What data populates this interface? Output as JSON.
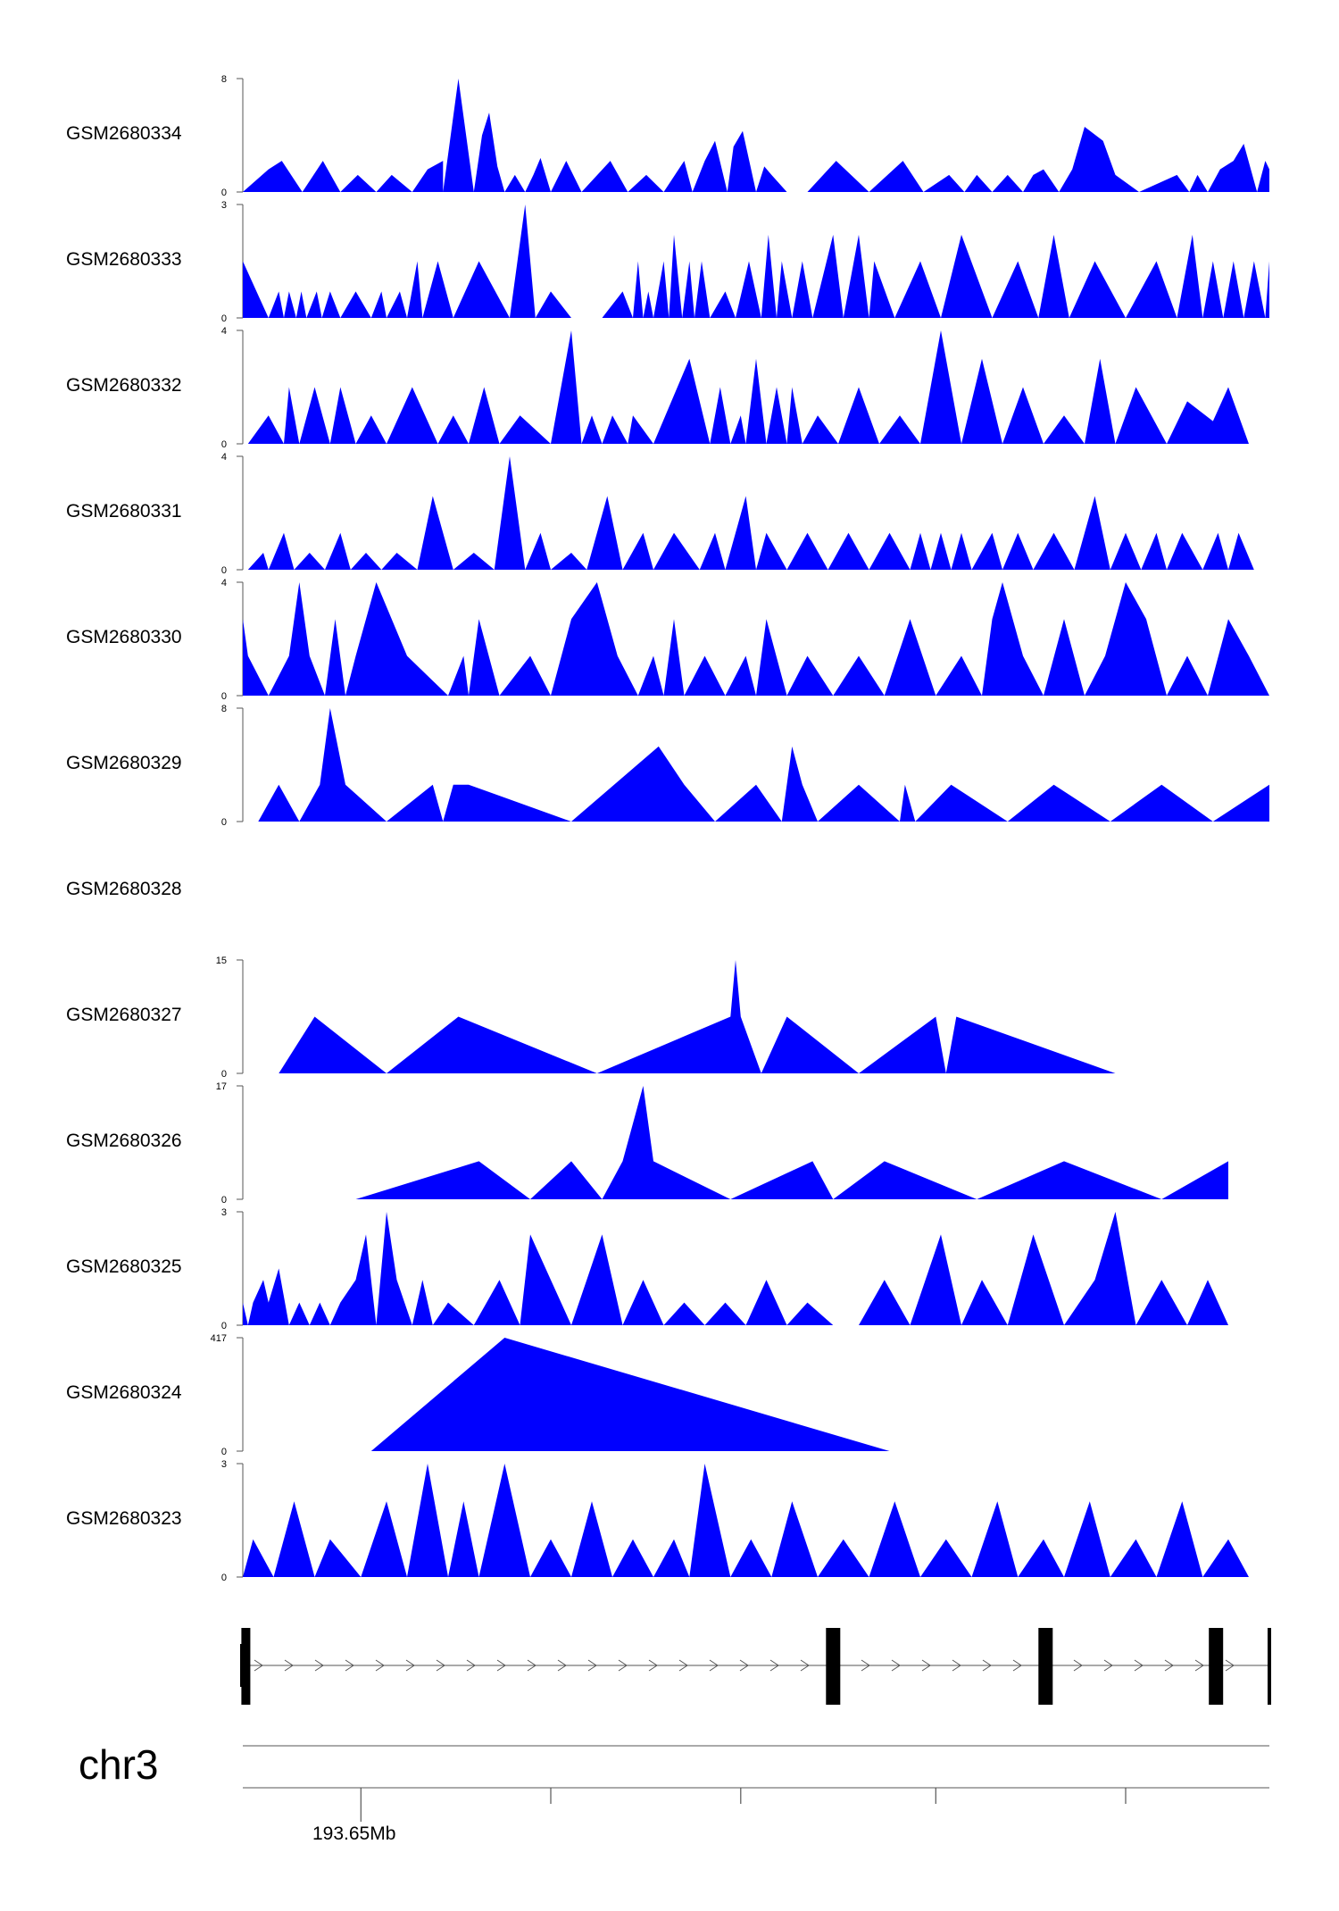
{
  "colors": {
    "signal": "#0000ff",
    "axis": "#555555",
    "gene": "#000000"
  },
  "chart_data": {
    "type": "area",
    "chromosome": "chr3",
    "position_label": "193.65Mb",
    "x_range": [
      0,
      1
    ],
    "tracks": [
      {
        "name": "GSM2680334",
        "ymax": 8,
        "x": [
          0,
          0.025,
          0.038,
          0.058,
          0.078,
          0.095,
          0.112,
          0.13,
          0.145,
          0.165,
          0.18,
          0.195,
          0.195,
          0.21,
          0.225,
          0.233,
          0.24,
          0.248,
          0.255,
          0.265,
          0.275,
          0.283,
          0.29,
          0.3,
          0.315,
          0.33,
          0.358,
          0.375,
          0.393,
          0.41,
          0.43,
          0.438,
          0.45,
          0.46,
          0.472,
          0.478,
          0.487,
          0.5,
          0.508,
          0.515,
          0.53,
          0.55,
          0.578,
          0.61,
          0.643,
          0.663,
          0.688,
          0.703,
          0.715,
          0.73,
          0.745,
          0.76,
          0.77,
          0.78,
          0.795,
          0.808,
          0.82,
          0.838,
          0.85,
          0.873,
          0.91,
          0.922,
          0.93,
          0.94,
          0.952,
          0.965,
          0.975,
          0.988,
          0.996,
          1.0
        ],
        "y": [
          0,
          1.6,
          2.2,
          0,
          2.2,
          0,
          1.2,
          0,
          1.2,
          0,
          1.6,
          2.2,
          0,
          8,
          0,
          4.0,
          5.6,
          1.8,
          0,
          1.2,
          0,
          1.2,
          2.4,
          0,
          2.2,
          0,
          2.2,
          0,
          1.2,
          0,
          2.2,
          0,
          2.2,
          3.6,
          0,
          3.2,
          4.3,
          0,
          1.8,
          1.2,
          0,
          0,
          2.2,
          0,
          2.2,
          0,
          1.2,
          0,
          1.2,
          0,
          1.2,
          0,
          1.2,
          1.6,
          0,
          1.6,
          4.6,
          3.6,
          1.2,
          0,
          1.2,
          0,
          1.2,
          0,
          1.6,
          2.2,
          3.4,
          0,
          2.2,
          1.6
        ]
      },
      {
        "name": "GSM2680333",
        "ymax": 3,
        "x": [
          0,
          0.025,
          0.035,
          0.04,
          0.045,
          0.052,
          0.057,
          0.062,
          0.072,
          0.077,
          0.085,
          0.095,
          0.11,
          0.125,
          0.135,
          0.14,
          0.153,
          0.16,
          0.17,
          0.175,
          0.19,
          0.205,
          0.23,
          0.26,
          0.275,
          0.285,
          0.3,
          0.32,
          0.35,
          0.37,
          0.38,
          0.385,
          0.39,
          0.395,
          0.4,
          0.41,
          0.415,
          0.42,
          0.428,
          0.435,
          0.44,
          0.447,
          0.455,
          0.47,
          0.48,
          0.493,
          0.505,
          0.512,
          0.52,
          0.525,
          0.535,
          0.545,
          0.555,
          0.575,
          0.585,
          0.6,
          0.61,
          0.615,
          0.635,
          0.66,
          0.68,
          0.7,
          0.73,
          0.755,
          0.775,
          0.79,
          0.805,
          0.83,
          0.86,
          0.89,
          0.91,
          0.925,
          0.935,
          0.945,
          0.955,
          0.965,
          0.975,
          0.985,
          0.996,
          1.0
        ],
        "y": [
          1.5,
          0,
          0.7,
          0,
          0.7,
          0,
          0.7,
          0,
          0.7,
          0,
          0.7,
          0,
          0.7,
          0,
          0.7,
          0,
          0.7,
          0,
          1.5,
          0,
          1.5,
          0,
          1.5,
          0,
          3.0,
          0,
          0.7,
          0,
          0,
          0.7,
          0,
          1.5,
          0,
          0.7,
          0,
          1.5,
          0,
          2.2,
          0,
          1.5,
          0,
          1.5,
          0,
          0.7,
          0,
          1.5,
          0,
          2.2,
          0,
          1.5,
          0,
          1.5,
          0,
          2.2,
          0,
          2.2,
          0,
          1.5,
          0,
          1.5,
          0,
          2.2,
          0,
          1.5,
          0,
          2.2,
          0,
          1.5,
          0,
          1.5,
          0,
          2.2,
          0,
          1.5,
          0,
          1.5,
          0,
          1.5,
          0,
          1.5
        ]
      },
      {
        "name": "GSM2680332",
        "ymax": 4,
        "x": [
          0.005,
          0.025,
          0.04,
          0.045,
          0.055,
          0.07,
          0.085,
          0.095,
          0.11,
          0.125,
          0.14,
          0.165,
          0.19,
          0.205,
          0.22,
          0.235,
          0.25,
          0.27,
          0.3,
          0.32,
          0.33,
          0.34,
          0.35,
          0.36,
          0.375,
          0.38,
          0.4,
          0.435,
          0.455,
          0.465,
          0.475,
          0.485,
          0.49,
          0.5,
          0.51,
          0.52,
          0.53,
          0.535,
          0.545,
          0.56,
          0.58,
          0.6,
          0.62,
          0.64,
          0.66,
          0.68,
          0.7,
          0.72,
          0.74,
          0.76,
          0.78,
          0.8,
          0.82,
          0.835,
          0.85,
          0.87,
          0.9,
          0.92,
          0.945,
          0.96,
          0.98
        ],
        "y": [
          0,
          1.0,
          0,
          2.0,
          0,
          2.0,
          0,
          2.0,
          0,
          1.0,
          0,
          2.0,
          0,
          1.0,
          0,
          2.0,
          0,
          1.0,
          0,
          4.0,
          0,
          1.0,
          0,
          1.0,
          0,
          1.0,
          0,
          3.0,
          0,
          2.0,
          0,
          1.0,
          0,
          3.0,
          0,
          2.0,
          0,
          2.0,
          0,
          1.0,
          0,
          2.0,
          0,
          1.0,
          0,
          4.0,
          0,
          3.0,
          0,
          2.0,
          0,
          1.0,
          0,
          3.0,
          0,
          2.0,
          0,
          1.5,
          0.8,
          2.0,
          0
        ]
      },
      {
        "name": "GSM2680331",
        "ymax": 4,
        "x": [
          0.005,
          0.02,
          0.025,
          0.04,
          0.05,
          0.065,
          0.08,
          0.095,
          0.105,
          0.12,
          0.135,
          0.15,
          0.17,
          0.185,
          0.205,
          0.225,
          0.245,
          0.26,
          0.275,
          0.29,
          0.3,
          0.32,
          0.335,
          0.355,
          0.37,
          0.39,
          0.4,
          0.42,
          0.445,
          0.46,
          0.47,
          0.49,
          0.5,
          0.51,
          0.53,
          0.55,
          0.57,
          0.59,
          0.61,
          0.63,
          0.65,
          0.66,
          0.67,
          0.68,
          0.69,
          0.7,
          0.71,
          0.73,
          0.74,
          0.755,
          0.77,
          0.79,
          0.81,
          0.83,
          0.845,
          0.86,
          0.875,
          0.89,
          0.9,
          0.915,
          0.935,
          0.95,
          0.96,
          0.97,
          0.985,
          0.995
        ],
        "y": [
          0,
          0.6,
          0,
          1.3,
          0,
          0.6,
          0,
          1.3,
          0,
          0.6,
          0,
          0.6,
          0,
          2.6,
          0,
          0.6,
          0,
          4.0,
          0,
          1.3,
          0,
          0.6,
          0,
          2.6,
          0,
          1.3,
          0,
          1.3,
          0,
          1.3,
          0,
          2.6,
          0,
          1.3,
          0,
          1.3,
          0,
          1.3,
          0,
          1.3,
          0,
          1.3,
          0,
          1.3,
          0,
          1.3,
          0,
          1.3,
          0,
          1.3,
          0,
          1.3,
          0,
          2.6,
          0,
          1.3,
          0,
          1.3,
          0,
          1.3,
          0,
          1.3,
          0,
          1.3,
          0,
          0
        ]
      },
      {
        "name": "GSM2680330",
        "ymax": 4,
        "x": [
          0.0,
          0.005,
          0.025,
          0.045,
          0.055,
          0.065,
          0.08,
          0.09,
          0.1,
          0.11,
          0.13,
          0.16,
          0.2,
          0.215,
          0.22,
          0.23,
          0.25,
          0.28,
          0.3,
          0.32,
          0.345,
          0.365,
          0.385,
          0.4,
          0.41,
          0.42,
          0.43,
          0.45,
          0.47,
          0.49,
          0.5,
          0.51,
          0.53,
          0.55,
          0.575,
          0.6,
          0.625,
          0.65,
          0.675,
          0.7,
          0.72,
          0.73,
          0.74,
          0.76,
          0.78,
          0.8,
          0.82,
          0.84,
          0.86,
          0.88,
          0.9,
          0.92,
          0.94,
          0.96,
          0.98,
          1.0
        ],
        "y": [
          2.7,
          1.4,
          0,
          1.4,
          4.0,
          1.4,
          0,
          2.7,
          0,
          1.4,
          4.0,
          1.4,
          0,
          1.4,
          0,
          2.7,
          0,
          1.4,
          0,
          2.7,
          4.0,
          1.4,
          0,
          1.4,
          0,
          2.7,
          0,
          1.4,
          0,
          1.4,
          0,
          2.7,
          0,
          1.4,
          0,
          1.4,
          0,
          2.7,
          0,
          1.4,
          0,
          2.7,
          4.0,
          1.4,
          0,
          2.7,
          0,
          1.4,
          4.0,
          2.7,
          0,
          1.4,
          0,
          2.7,
          1.4,
          0
        ]
      },
      {
        "name": "GSM2680329",
        "ymax": 8,
        "x": [
          0.015,
          0.035,
          0.055,
          0.075,
          0.085,
          0.1,
          0.14,
          0.185,
          0.195,
          0.205,
          0.22,
          0.32,
          0.405,
          0.43,
          0.46,
          0.5,
          0.525,
          0.535,
          0.545,
          0.56,
          0.6,
          0.64,
          0.645,
          0.655,
          0.69,
          0.745,
          0.79,
          0.845,
          0.895,
          0.945,
          1.0
        ],
        "y": [
          0,
          2.6,
          0,
          2.6,
          8,
          2.6,
          0,
          2.6,
          0,
          2.6,
          2.6,
          0,
          5.3,
          2.6,
          0,
          2.6,
          0,
          5.3,
          2.6,
          0,
          2.6,
          0,
          2.6,
          0,
          2.6,
          0,
          2.6,
          0,
          2.6,
          0,
          2.6
        ]
      },
      {
        "name": "GSM2680328",
        "ymax": null,
        "x": [],
        "y": []
      },
      {
        "name": "GSM2680327",
        "ymax": 15,
        "x": [
          0.035,
          0.07,
          0.14,
          0.21,
          0.345,
          0.475,
          0.48,
          0.485,
          0.505,
          0.53,
          0.6,
          0.675,
          0.685,
          0.695,
          0.85
        ],
        "y": [
          0,
          7.5,
          0,
          7.5,
          0,
          7.5,
          15,
          7.5,
          0,
          7.5,
          0,
          7.5,
          0,
          7.5,
          0
        ]
      },
      {
        "name": "GSM2680326",
        "ymax": 17,
        "x": [
          0.11,
          0.23,
          0.28,
          0.32,
          0.35,
          0.37,
          0.39,
          0.4,
          0.475,
          0.555,
          0.575,
          0.625,
          0.715,
          0.8,
          0.895,
          0.96
        ],
        "y": [
          0,
          5.7,
          0,
          5.7,
          0,
          5.7,
          17,
          5.7,
          0,
          5.7,
          0,
          5.7,
          0,
          5.7,
          0,
          5.7
        ]
      },
      {
        "name": "GSM2680325",
        "ymax": 3,
        "x": [
          0.0,
          0.005,
          0.01,
          0.02,
          0.025,
          0.035,
          0.045,
          0.055,
          0.065,
          0.075,
          0.085,
          0.095,
          0.11,
          0.12,
          0.13,
          0.14,
          0.15,
          0.165,
          0.175,
          0.185,
          0.2,
          0.225,
          0.25,
          0.27,
          0.28,
          0.3,
          0.32,
          0.335,
          0.35,
          0.37,
          0.39,
          0.41,
          0.43,
          0.45,
          0.47,
          0.49,
          0.51,
          0.53,
          0.55,
          0.575,
          0.6,
          0.625,
          0.65,
          0.68,
          0.7,
          0.72,
          0.745,
          0.77,
          0.8,
          0.83,
          0.85,
          0.87,
          0.895,
          0.92,
          0.94,
          0.96,
          0.98
        ],
        "y": [
          0.6,
          0,
          0.6,
          1.2,
          0.6,
          1.5,
          0,
          0.6,
          0,
          0.6,
          0,
          0.6,
          1.2,
          2.4,
          0,
          3.0,
          1.2,
          0,
          1.2,
          0,
          0.6,
          0,
          1.2,
          0,
          2.4,
          1.2,
          0,
          1.2,
          2.4,
          0,
          1.2,
          0,
          0.6,
          0,
          0.6,
          0,
          1.2,
          0,
          0.6,
          0,
          0,
          1.2,
          0,
          2.4,
          0,
          1.2,
          0,
          2.4,
          0,
          1.2,
          3.0,
          0,
          1.2,
          0,
          1.2,
          0,
          0
        ]
      },
      {
        "name": "GSM2680324",
        "ymax": 417,
        "x": [
          0.125,
          0.255,
          0.63
        ],
        "y": [
          0,
          417,
          0
        ]
      },
      {
        "name": "GSM2680323",
        "ymax": 3,
        "x": [
          0.0,
          0.01,
          0.03,
          0.05,
          0.07,
          0.085,
          0.115,
          0.14,
          0.16,
          0.18,
          0.2,
          0.215,
          0.23,
          0.255,
          0.28,
          0.3,
          0.32,
          0.34,
          0.36,
          0.38,
          0.4,
          0.42,
          0.435,
          0.45,
          0.475,
          0.495,
          0.515,
          0.535,
          0.56,
          0.585,
          0.61,
          0.635,
          0.66,
          0.685,
          0.71,
          0.735,
          0.755,
          0.78,
          0.8,
          0.825,
          0.845,
          0.87,
          0.89,
          0.915,
          0.935,
          0.96,
          0.98,
          0.995
        ],
        "y": [
          0,
          1.0,
          0,
          2.0,
          0,
          1.0,
          0,
          2.0,
          0,
          3.0,
          0,
          2.0,
          0,
          3.0,
          0,
          1.0,
          0,
          2.0,
          0,
          1.0,
          0,
          1.0,
          0,
          3.0,
          0,
          1.0,
          0,
          2.0,
          0,
          1.0,
          0,
          2.0,
          0,
          1.0,
          0,
          2.0,
          0,
          1.0,
          0,
          2.0,
          0,
          1.0,
          0,
          2.0,
          0,
          1.0,
          0,
          0
        ]
      }
    ],
    "gene_model": {
      "strand": "+",
      "exon_positions": [
        0.003,
        0.575,
        0.782,
        0.948,
        1.0
      ]
    },
    "genome_axis_ticks": [
      0.115,
      0.3,
      0.485,
      0.675,
      0.86
    ]
  }
}
